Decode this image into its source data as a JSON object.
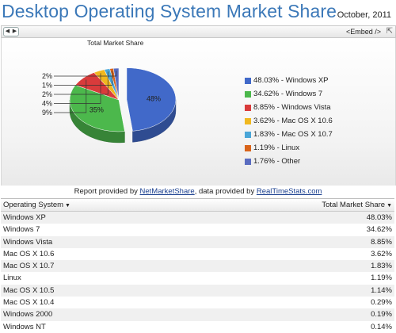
{
  "header": {
    "title": "Desktop Operating System Market Share",
    "date": "October, 2011"
  },
  "toolbar": {
    "prev_label": "◀",
    "next_label": "▶",
    "embed_label": "<Embed />",
    "share_icon": "share-icon"
  },
  "chart_data": {
    "type": "pie",
    "title": "Total Market Share",
    "slices": [
      {
        "label": "Windows XP",
        "value": 48.03,
        "legend": "48.03% - Windows XP",
        "pct_label": "48%",
        "color": "#4169c9"
      },
      {
        "label": "Windows 7",
        "value": 34.62,
        "legend": "34.62% - Windows 7",
        "pct_label": "35%",
        "color": "#4cb84c"
      },
      {
        "label": "Windows Vista",
        "value": 8.85,
        "legend": "8.85% - Windows Vista",
        "pct_label": "9%",
        "color": "#d93b3b"
      },
      {
        "label": "Mac OS X 10.6",
        "value": 3.62,
        "legend": "3.62% - Mac OS X 10.6",
        "pct_label": "4%",
        "color": "#f0b81f"
      },
      {
        "label": "Mac OS X 10.7",
        "value": 1.83,
        "legend": "1.83% - Mac OS X 10.7",
        "pct_label": "2%",
        "color": "#4aa6d8"
      },
      {
        "label": "Linux",
        "value": 1.19,
        "legend": "1.19% - Linux",
        "pct_label": "1%",
        "color": "#d9641a"
      },
      {
        "label": "Other",
        "value": 1.76,
        "legend": "1.76% - Other",
        "pct_label": "2%",
        "color": "#5a6cc0"
      }
    ],
    "legend_placement": "right"
  },
  "report": {
    "prefix": "Report provided by ",
    "link1": "NetMarketShare",
    "middle": ", data provided by ",
    "link2": "RealTimeStats.com"
  },
  "table": {
    "col1": "Operating System",
    "col2": "Total Market Share",
    "rows": [
      {
        "name": "Windows XP",
        "share": "48.03%"
      },
      {
        "name": "Windows 7",
        "share": "34.62%"
      },
      {
        "name": "Windows Vista",
        "share": "8.85%"
      },
      {
        "name": "Mac OS X 10.6",
        "share": "3.62%"
      },
      {
        "name": "Mac OS X 10.7",
        "share": "1.83%"
      },
      {
        "name": "Linux",
        "share": "1.19%"
      },
      {
        "name": "Mac OS X 10.5",
        "share": "1.14%"
      },
      {
        "name": "Mac OS X 10.4",
        "share": "0.29%"
      },
      {
        "name": "Windows 2000",
        "share": "0.19%"
      },
      {
        "name": "Windows NT",
        "share": "0.14%"
      }
    ]
  }
}
